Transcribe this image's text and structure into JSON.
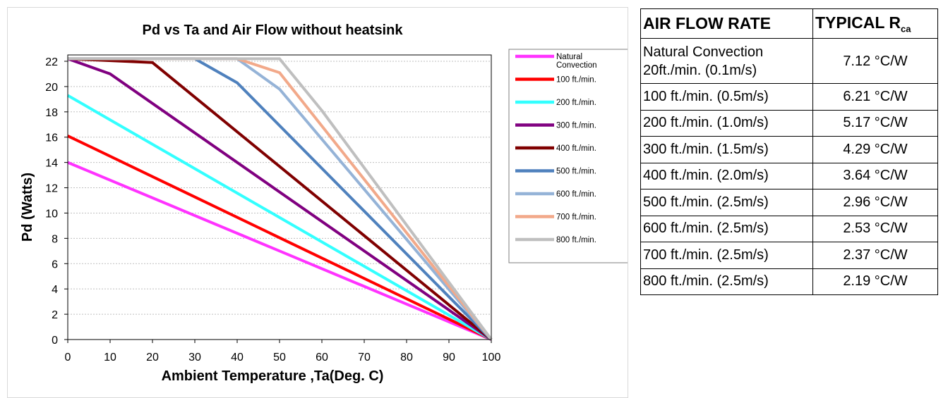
{
  "chart_data": {
    "type": "line",
    "title": "Pd vs Ta and Air Flow without heatsink",
    "xlabel": "Ambient Temperature ,Ta(Deg. C)",
    "ylabel": "Pd (Watts)",
    "xlim": [
      0,
      100
    ],
    "ylim": [
      0,
      22
    ],
    "xticks": [
      "0",
      "10",
      "20",
      "30",
      "40",
      "50",
      "60",
      "70",
      "80",
      "90",
      "100"
    ],
    "yticks": [
      "0",
      "2",
      "4",
      "6",
      "8",
      "10",
      "12",
      "14",
      "16",
      "18",
      "20",
      "22"
    ],
    "grid": "horizontal dashed",
    "legend_position": "right",
    "series": [
      {
        "name": "Natural Convection",
        "color": "#ff33ff",
        "points": [
          [
            0,
            14.0
          ],
          [
            100,
            0
          ]
        ]
      },
      {
        "name": "100 ft./min.",
        "color": "#ff0000",
        "points": [
          [
            0,
            16.1
          ],
          [
            100,
            0
          ]
        ]
      },
      {
        "name": "200 ft./min.",
        "color": "#33ffff",
        "points": [
          [
            0,
            19.3
          ],
          [
            100,
            0
          ]
        ]
      },
      {
        "name": "300 ft./min.",
        "color": "#800080",
        "points": [
          [
            0,
            22.2
          ],
          [
            10,
            21.0
          ],
          [
            100,
            0
          ]
        ]
      },
      {
        "name": "400 ft./min.",
        "color": "#800000",
        "points": [
          [
            0,
            22.2
          ],
          [
            20,
            21.9
          ],
          [
            100,
            0
          ]
        ]
      },
      {
        "name": "500 ft./min.",
        "color": "#4f81bd",
        "points": [
          [
            0,
            22.2
          ],
          [
            30,
            22.2
          ],
          [
            40,
            20.3
          ],
          [
            100,
            0
          ]
        ]
      },
      {
        "name": "600 ft./min.",
        "color": "#95b3d7",
        "points": [
          [
            0,
            22.2
          ],
          [
            40,
            22.2
          ],
          [
            50,
            19.8
          ],
          [
            100,
            0
          ]
        ]
      },
      {
        "name": "700 ft./min.",
        "color": "#f2a98a",
        "points": [
          [
            0,
            22.2
          ],
          [
            40,
            22.2
          ],
          [
            50,
            21.1
          ],
          [
            100,
            0
          ]
        ]
      },
      {
        "name": "800 ft./min.",
        "color": "#bfbfbf",
        "points": [
          [
            0,
            22.2
          ],
          [
            50,
            22.2
          ],
          [
            60,
            18.1
          ],
          [
            100,
            0
          ]
        ]
      }
    ]
  },
  "table": {
    "header_rate": "AIR FLOW RATE",
    "header_typical": "TYPICAL R",
    "header_sub": "ca",
    "rows": [
      {
        "rate_line1": "Natural Convection",
        "rate_line2": "20ft./min. (0.1m/s)",
        "value": "7.12 °C/W"
      },
      {
        "rate": "100 ft./min. (0.5m/s)",
        "value": "6.21 °C/W"
      },
      {
        "rate": "200 ft./min. (1.0m/s)",
        "value": "5.17 °C/W"
      },
      {
        "rate": "300 ft./min. (1.5m/s)",
        "value": "4.29 °C/W"
      },
      {
        "rate": "400 ft./min. (2.0m/s)",
        "value": "3.64 °C/W"
      },
      {
        "rate": "500 ft./min. (2.5m/s)",
        "value": "2.96 °C/W"
      },
      {
        "rate": "600 ft./min. (2.5m/s)",
        "value": "2.53 °C/W"
      },
      {
        "rate": "700 ft./min. (2.5m/s)",
        "value": "2.37 °C/W"
      },
      {
        "rate": "800 ft./min. (2.5m/s)",
        "value": "2.19 °C/W"
      }
    ]
  }
}
